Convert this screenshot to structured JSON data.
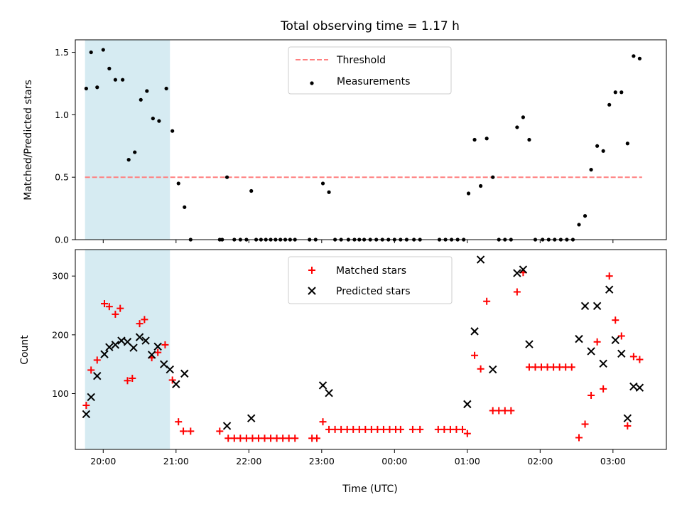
{
  "chart_data": [
    {
      "type": "scatter",
      "title": "Total observing time = 1.17 h",
      "xlabel": "",
      "ylabel": "Matched/Predicted stars",
      "xlim": [
        "19:37",
        "03:44"
      ],
      "ylim": [
        0,
        1.6
      ],
      "yticks": [
        "0.0",
        "0.5",
        "1.0",
        "1.5"
      ],
      "highlight_span": [
        "19:45",
        "20:55"
      ],
      "highlight_color": "#add8e6",
      "threshold": {
        "name": "Threshold",
        "y": 0.5,
        "x_range": [
          "19:45",
          "03:24"
        ],
        "color": "#ff7f7f",
        "style": "dashed"
      },
      "series": [
        {
          "name": "Measurements",
          "marker": "dot",
          "color": "#000000",
          "points": [
            [
              "19:46",
              1.21
            ],
            [
              "19:50",
              1.5
            ],
            [
              "19:55",
              1.22
            ],
            [
              "20:00",
              1.52
            ],
            [
              "20:05",
              1.37
            ],
            [
              "20:10",
              1.28
            ],
            [
              "20:16",
              1.28
            ],
            [
              "20:21",
              0.64
            ],
            [
              "20:26",
              0.7
            ],
            [
              "20:31",
              1.12
            ],
            [
              "20:36",
              1.19
            ],
            [
              "20:41",
              0.97
            ],
            [
              "20:46",
              0.95
            ],
            [
              "20:52",
              1.21
            ],
            [
              "20:57",
              0.87
            ],
            [
              "21:02",
              0.45
            ],
            [
              "21:07",
              0.26
            ],
            [
              "21:12",
              0.0
            ],
            [
              "21:36",
              0.0
            ],
            [
              "21:38",
              0.0
            ],
            [
              "21:42",
              0.5
            ],
            [
              "21:48",
              0.0
            ],
            [
              "21:53",
              0.0
            ],
            [
              "21:58",
              0.0
            ],
            [
              "22:02",
              0.39
            ],
            [
              "22:06",
              0.0
            ],
            [
              "22:10",
              0.0
            ],
            [
              "22:14",
              0.0
            ],
            [
              "22:18",
              0.0
            ],
            [
              "22:22",
              0.0
            ],
            [
              "22:26",
              0.0
            ],
            [
              "22:30",
              0.0
            ],
            [
              "22:34",
              0.0
            ],
            [
              "22:38",
              0.0
            ],
            [
              "22:50",
              0.0
            ],
            [
              "22:55",
              0.0
            ],
            [
              "23:01",
              0.45
            ],
            [
              "23:06",
              0.38
            ],
            [
              "23:11",
              0.0
            ],
            [
              "23:16",
              0.0
            ],
            [
              "23:22",
              0.0
            ],
            [
              "23:27",
              0.0
            ],
            [
              "23:31",
              0.0
            ],
            [
              "23:35",
              0.0
            ],
            [
              "23:40",
              0.0
            ],
            [
              "23:45",
              0.0
            ],
            [
              "23:50",
              0.0
            ],
            [
              "23:55",
              0.0
            ],
            [
              "00:00",
              0.0
            ],
            [
              "00:05",
              0.0
            ],
            [
              "00:10",
              0.0
            ],
            [
              "00:16",
              0.0
            ],
            [
              "00:21",
              0.0
            ],
            [
              "00:37",
              0.0
            ],
            [
              "00:42",
              0.0
            ],
            [
              "00:47",
              0.0
            ],
            [
              "00:52",
              0.0
            ],
            [
              "00:57",
              0.0
            ],
            [
              "01:01",
              0.37
            ],
            [
              "01:06",
              0.8
            ],
            [
              "01:11",
              0.43
            ],
            [
              "01:16",
              0.81
            ],
            [
              "01:21",
              0.5
            ],
            [
              "01:26",
              0.0
            ],
            [
              "01:31",
              0.0
            ],
            [
              "01:36",
              0.0
            ],
            [
              "01:41",
              0.9
            ],
            [
              "01:46",
              0.98
            ],
            [
              "01:51",
              0.8
            ],
            [
              "01:56",
              0.0
            ],
            [
              "02:02",
              0.0
            ],
            [
              "02:07",
              0.0
            ],
            [
              "02:12",
              0.0
            ],
            [
              "02:17",
              0.0
            ],
            [
              "02:22",
              0.0
            ],
            [
              "02:27",
              0.0
            ],
            [
              "02:32",
              0.12
            ],
            [
              "02:37",
              0.19
            ],
            [
              "02:42",
              0.56
            ],
            [
              "02:47",
              0.75
            ],
            [
              "02:52",
              0.71
            ],
            [
              "02:57",
              1.08
            ],
            [
              "03:02",
              1.18
            ],
            [
              "03:07",
              1.18
            ],
            [
              "03:12",
              0.77
            ],
            [
              "03:17",
              1.47
            ],
            [
              "03:22",
              1.45
            ]
          ]
        }
      ],
      "legend": {
        "position": "top-center",
        "entries": [
          "Threshold",
          "Measurements"
        ]
      }
    },
    {
      "type": "scatter",
      "title": "",
      "xlabel": "Time (UTC)",
      "ylabel": "Count",
      "xlim": [
        "19:37",
        "03:44"
      ],
      "ylim": [
        5,
        345
      ],
      "yticks": [
        "100",
        "200",
        "300"
      ],
      "xticks": [
        "20:00",
        "21:00",
        "22:00",
        "23:00",
        "00:00",
        "01:00",
        "02:00",
        "03:00"
      ],
      "highlight_span": [
        "19:45",
        "20:55"
      ],
      "highlight_color": "#add8e6",
      "series": [
        {
          "name": "Matched stars",
          "marker": "plus",
          "color": "#ff0000",
          "points": [
            [
              "19:46",
              80
            ],
            [
              "19:50",
              140
            ],
            [
              "19:55",
              157
            ],
            [
              "20:01",
              253
            ],
            [
              "20:05",
              248
            ],
            [
              "20:10",
              235
            ],
            [
              "20:14",
              245
            ],
            [
              "20:20",
              122
            ],
            [
              "20:24",
              126
            ],
            [
              "20:30",
              219
            ],
            [
              "20:34",
              226
            ],
            [
              "20:40",
              161
            ],
            [
              "20:45",
              170
            ],
            [
              "20:51",
              183
            ],
            [
              "20:57",
              123
            ],
            [
              "21:02",
              52
            ],
            [
              "21:06",
              36
            ],
            [
              "21:12",
              36
            ],
            [
              "21:36",
              36
            ],
            [
              "21:43",
              24
            ],
            [
              "21:48",
              24
            ],
            [
              "21:53",
              24
            ],
            [
              "21:58",
              24
            ],
            [
              "22:03",
              24
            ],
            [
              "22:08",
              24
            ],
            [
              "22:13",
              24
            ],
            [
              "22:18",
              24
            ],
            [
              "22:23",
              24
            ],
            [
              "22:28",
              24
            ],
            [
              "22:33",
              24
            ],
            [
              "22:38",
              24
            ],
            [
              "22:52",
              24
            ],
            [
              "22:56",
              24
            ],
            [
              "23:01",
              52
            ],
            [
              "23:06",
              39
            ],
            [
              "23:11",
              39
            ],
            [
              "23:16",
              39
            ],
            [
              "23:21",
              39
            ],
            [
              "23:26",
              39
            ],
            [
              "23:31",
              39
            ],
            [
              "23:36",
              39
            ],
            [
              "23:41",
              39
            ],
            [
              "23:46",
              39
            ],
            [
              "23:51",
              39
            ],
            [
              "23:56",
              39
            ],
            [
              "00:01",
              39
            ],
            [
              "00:05",
              39
            ],
            [
              "00:15",
              39
            ],
            [
              "00:21",
              39
            ],
            [
              "00:36",
              39
            ],
            [
              "00:41",
              39
            ],
            [
              "00:46",
              39
            ],
            [
              "00:51",
              39
            ],
            [
              "00:56",
              39
            ],
            [
              "01:00",
              32
            ],
            [
              "01:06",
              165
            ],
            [
              "01:11",
              142
            ],
            [
              "01:16",
              257
            ],
            [
              "01:21",
              71
            ],
            [
              "01:26",
              71
            ],
            [
              "01:31",
              71
            ],
            [
              "01:36",
              71
            ],
            [
              "01:41",
              273
            ],
            [
              "01:46",
              306
            ],
            [
              "01:51",
              145
            ],
            [
              "01:56",
              145
            ],
            [
              "02:01",
              145
            ],
            [
              "02:06",
              145
            ],
            [
              "02:11",
              145
            ],
            [
              "02:16",
              145
            ],
            [
              "02:21",
              145
            ],
            [
              "02:26",
              145
            ],
            [
              "02:32",
              25
            ],
            [
              "02:37",
              48
            ],
            [
              "02:42",
              97
            ],
            [
              "02:47",
              188
            ],
            [
              "02:52",
              108
            ],
            [
              "02:57",
              300
            ],
            [
              "03:02",
              225
            ],
            [
              "03:07",
              198
            ],
            [
              "03:12",
              45
            ],
            [
              "03:17",
              163
            ],
            [
              "03:22",
              158
            ]
          ]
        },
        {
          "name": "Predicted stars",
          "marker": "x",
          "color": "#000000",
          "points": [
            [
              "19:46",
              65
            ],
            [
              "19:50",
              94
            ],
            [
              "19:55",
              130
            ],
            [
              "20:01",
              167
            ],
            [
              "20:05",
              179
            ],
            [
              "20:10",
              183
            ],
            [
              "20:15",
              190
            ],
            [
              "20:20",
              188
            ],
            [
              "20:25",
              178
            ],
            [
              "20:30",
              196
            ],
            [
              "20:35",
              190
            ],
            [
              "20:40",
              166
            ],
            [
              "20:45",
              180
            ],
            [
              "20:50",
              150
            ],
            [
              "20:55",
              141
            ],
            [
              "21:00",
              116
            ],
            [
              "21:07",
              134
            ],
            [
              "21:42",
              45
            ],
            [
              "22:02",
              58
            ],
            [
              "23:01",
              114
            ],
            [
              "23:06",
              101
            ],
            [
              "01:00",
              82
            ],
            [
              "01:06",
              206
            ],
            [
              "01:11",
              328
            ],
            [
              "01:21",
              141
            ],
            [
              "01:41",
              305
            ],
            [
              "01:46",
              311
            ],
            [
              "01:51",
              184
            ],
            [
              "02:32",
              193
            ],
            [
              "02:37",
              249
            ],
            [
              "02:42",
              172
            ],
            [
              "02:47",
              249
            ],
            [
              "02:52",
              151
            ],
            [
              "02:57",
              277
            ],
            [
              "03:02",
              191
            ],
            [
              "03:07",
              168
            ],
            [
              "03:12",
              58
            ],
            [
              "03:17",
              112
            ],
            [
              "03:22",
              110
            ]
          ]
        }
      ],
      "legend": {
        "position": "top-center",
        "entries": [
          "Matched stars",
          "Predicted stars"
        ]
      }
    }
  ]
}
